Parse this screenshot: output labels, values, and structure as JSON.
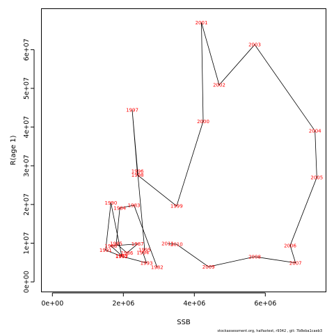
{
  "chart_data": {
    "type": "line",
    "xlabel": "SSB",
    "ylabel": "R(age 1)",
    "xlim": [
      -300000,
      7700000
    ],
    "ylim": [
      -2500000,
      70500000
    ],
    "x_ticks": [
      {
        "value": 0,
        "label": "0e+00"
      },
      {
        "value": 2000000,
        "label": "2e+06"
      },
      {
        "value": 4000000,
        "label": "4e+06"
      },
      {
        "value": 6000000,
        "label": "6e+06"
      }
    ],
    "y_ticks": [
      {
        "value": 0,
        "label": "0e+00"
      },
      {
        "value": 10000000,
        "label": "1e+07"
      },
      {
        "value": 20000000,
        "label": "2e+07"
      },
      {
        "value": 30000000,
        "label": "3e+07"
      },
      {
        "value": 40000000,
        "label": "4e+07"
      },
      {
        "value": 50000000,
        "label": "5e+07"
      },
      {
        "value": 60000000,
        "label": "6e+07"
      }
    ],
    "points": [
      {
        "year": "1982",
        "x": 2950000,
        "y": 3800000
      },
      {
        "year": "1983",
        "x": 2300000,
        "y": 19800000
      },
      {
        "year": "1984",
        "x": 1900000,
        "y": 19100000
      },
      {
        "year": "1985",
        "x": 1800000,
        "y": 9900000
      },
      {
        "year": "1986",
        "x": 2100000,
        "y": 7500000
      },
      {
        "year": "1987",
        "x": 2400000,
        "y": 9800000
      },
      {
        "year": "1988",
        "x": 1650000,
        "y": 9300000
      },
      {
        "year": "1989",
        "x": 1950000,
        "y": 6800000
      },
      {
        "year": "1990",
        "x": 1650000,
        "y": 20400000
      },
      {
        "year": "1991",
        "x": 1500000,
        "y": 8200000
      },
      {
        "year": "1992",
        "x": 1950000,
        "y": 6600000
      },
      {
        "year": "1993",
        "x": 2650000,
        "y": 4900000
      },
      {
        "year": "1994",
        "x": 2550000,
        "y": 7600000
      },
      {
        "year": "1995",
        "x": 2600000,
        "y": 8300000
      },
      {
        "year": "1996",
        "x": 2400000,
        "y": 28600000
      },
      {
        "year": "1997",
        "x": 2250000,
        "y": 44400000
      },
      {
        "year": "1998",
        "x": 2400000,
        "y": 27600000
      },
      {
        "year": "1999",
        "x": 3500000,
        "y": 19600000
      },
      {
        "year": "2000",
        "x": 4250000,
        "y": 41500000
      },
      {
        "year": "2001",
        "x": 4200000,
        "y": 67000000
      },
      {
        "year": "2002",
        "x": 4700000,
        "y": 50900000
      },
      {
        "year": "2003",
        "x": 5700000,
        "y": 61300000
      },
      {
        "year": "2004",
        "x": 7400000,
        "y": 39000000
      },
      {
        "year": "2005",
        "x": 7450000,
        "y": 27000000
      },
      {
        "year": "2006",
        "x": 6700000,
        "y": 9400000
      },
      {
        "year": "2007",
        "x": 6850000,
        "y": 4900000
      },
      {
        "year": "2008",
        "x": 5700000,
        "y": 6500000
      },
      {
        "year": "2009",
        "x": 4400000,
        "y": 3900000
      },
      {
        "year": "2010",
        "x": 3500000,
        "y": 9700000
      },
      {
        "year": "2011",
        "x": 3250000,
        "y": 9900000
      }
    ],
    "path_order": [
      "1982",
      "1983",
      "1984",
      "1985",
      "1986",
      "1987",
      "1988",
      "1989",
      "1990",
      "1991",
      "1992",
      "1993",
      "1994",
      "1995",
      "1996",
      "1997",
      "1998",
      "1999",
      "2000",
      "2001",
      "2002",
      "2003",
      "2004",
      "2005",
      "2006",
      "2007",
      "2008",
      "2009",
      "2010",
      "2011"
    ],
    "line_color": "#000000",
    "label_color": "#ff0000"
  },
  "footer": "stockassessment.org, halfaxtest, r9342 , git: 7b8eba1caeb3"
}
